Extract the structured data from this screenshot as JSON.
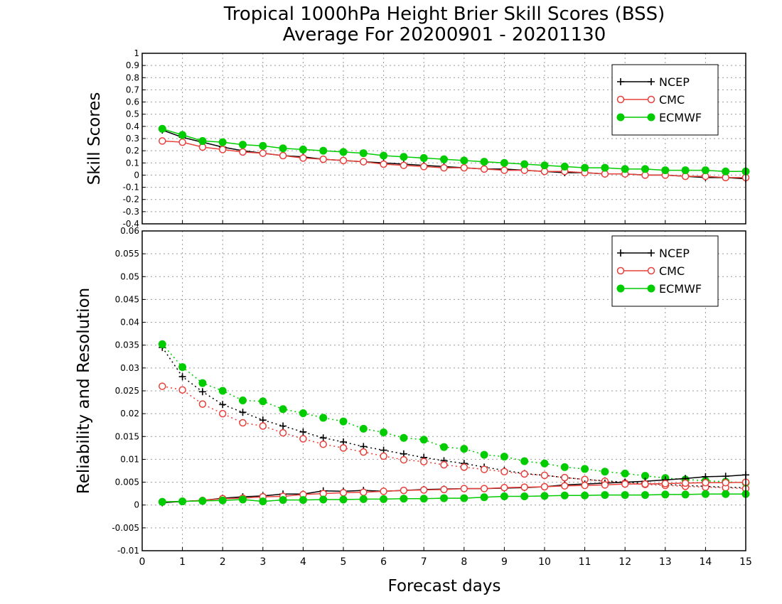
{
  "title_line1": "Tropical 1000hPa Height Brier Skill Scores (BSS)",
  "title_line2": "Average For 20200901 - 20201130",
  "xlabel": "Forecast days",
  "colors": {
    "NCEP": "#000000",
    "CMC": "#e8403a",
    "ECMWF": "#00cc00",
    "grid": "#999999"
  },
  "chart_data": [
    {
      "type": "line",
      "ylabel": "Skill Scores",
      "xlim": [
        0,
        15
      ],
      "ylim": [
        -0.4,
        1
      ],
      "x_ticks": [
        "0",
        "1",
        "2",
        "3",
        "4",
        "5",
        "6",
        "7",
        "8",
        "9",
        "10",
        "11",
        "12",
        "13",
        "14",
        "15"
      ],
      "y_ticks": [
        "-0.4",
        "-0.3",
        "-0.2",
        "-0.1",
        "0",
        "0.1",
        "0.2",
        "0.3",
        "0.4",
        "0.5",
        "0.6",
        "0.7",
        "0.8",
        "0.9",
        "1"
      ],
      "grid": true,
      "legend": "top-right",
      "x": [
        0.5,
        1,
        1.5,
        2,
        2.5,
        3,
        3.5,
        4,
        4.5,
        5,
        5.5,
        6,
        6.5,
        7,
        7.5,
        8,
        8.5,
        9,
        9.5,
        10,
        10.5,
        11,
        11.5,
        12,
        12.5,
        13,
        13.5,
        14,
        14.5,
        15
      ],
      "series": [
        {
          "name": "NCEP",
          "marker": "plus",
          "line": "solid",
          "values": [
            0.37,
            0.31,
            0.27,
            0.23,
            0.2,
            0.18,
            0.16,
            0.15,
            0.13,
            0.12,
            0.11,
            0.1,
            0.09,
            0.08,
            0.07,
            0.06,
            0.05,
            0.05,
            0.04,
            0.03,
            0.02,
            0.02,
            0.01,
            0.01,
            0.0,
            0.0,
            -0.01,
            -0.02,
            -0.02,
            -0.03
          ]
        },
        {
          "name": "CMC",
          "marker": "circle-open",
          "line": "solid",
          "values": [
            0.28,
            0.27,
            0.23,
            0.21,
            0.19,
            0.18,
            0.16,
            0.14,
            0.13,
            0.12,
            0.11,
            0.09,
            0.08,
            0.07,
            0.06,
            0.06,
            0.05,
            0.04,
            0.04,
            0.03,
            0.03,
            0.02,
            0.01,
            0.01,
            0.0,
            0.0,
            -0.01,
            -0.01,
            -0.02,
            -0.02
          ]
        },
        {
          "name": "ECMWF",
          "marker": "circle-filled",
          "line": "solid",
          "values": [
            0.38,
            0.33,
            0.28,
            0.27,
            0.25,
            0.24,
            0.22,
            0.21,
            0.2,
            0.19,
            0.18,
            0.16,
            0.15,
            0.14,
            0.13,
            0.12,
            0.11,
            0.1,
            0.09,
            0.08,
            0.07,
            0.06,
            0.06,
            0.05,
            0.05,
            0.04,
            0.04,
            0.04,
            0.03,
            0.03
          ]
        }
      ]
    },
    {
      "type": "line",
      "ylabel": "Reliability and Resolution",
      "xlabel": "Forecast days",
      "xlim": [
        0,
        15
      ],
      "ylim": [
        -0.01,
        0.06
      ],
      "x_ticks": [
        "0",
        "1",
        "2",
        "3",
        "4",
        "5",
        "6",
        "7",
        "8",
        "9",
        "10",
        "11",
        "12",
        "13",
        "14",
        "15"
      ],
      "y_ticks": [
        "-0.01",
        "-0.005",
        "0",
        "0.005",
        "0.01",
        "0.015",
        "0.02",
        "0.025",
        "0.03",
        "0.035",
        "0.04",
        "0.045",
        "0.05",
        "0.055",
        "0.06"
      ],
      "grid": true,
      "legend": "top-right",
      "x": [
        0.5,
        1,
        1.5,
        2,
        2.5,
        3,
        3.5,
        4,
        4.5,
        5,
        5.5,
        6,
        6.5,
        7,
        7.5,
        8,
        8.5,
        9,
        9.5,
        10,
        10.5,
        11,
        11.5,
        12,
        12.5,
        13,
        13.5,
        14,
        14.5,
        15
      ],
      "legend_series": [
        "NCEP",
        "CMC",
        "ECMWF"
      ],
      "series": [
        {
          "name": "NCEP",
          "marker": "plus",
          "line": "dotted",
          "values": [
            0.0345,
            0.0281,
            0.0248,
            0.022,
            0.0203,
            0.0186,
            0.0173,
            0.016,
            0.0147,
            0.0138,
            0.0128,
            0.012,
            0.0112,
            0.0104,
            0.0097,
            0.0091,
            0.0083,
            0.0076,
            0.0069,
            0.0065,
            0.006,
            0.0056,
            0.0053,
            0.005,
            0.0047,
            0.0045,
            0.0043,
            0.0041,
            0.0039,
            0.0038
          ]
        },
        {
          "name": "CMC",
          "marker": "circle-open",
          "line": "dotted",
          "values": [
            0.026,
            0.0252,
            0.0221,
            0.02,
            0.018,
            0.0173,
            0.0158,
            0.0145,
            0.0133,
            0.0125,
            0.0116,
            0.0107,
            0.0099,
            0.0095,
            0.0088,
            0.0083,
            0.0078,
            0.0073,
            0.0068,
            0.0065,
            0.006,
            0.0056,
            0.0052,
            0.0048,
            0.0045,
            0.0043,
            0.0041,
            0.0039,
            0.0038,
            0.0036
          ]
        },
        {
          "name": "ECMWF",
          "marker": "circle-filled",
          "line": "dotted",
          "values": [
            0.0352,
            0.0302,
            0.0267,
            0.025,
            0.0229,
            0.0227,
            0.021,
            0.0201,
            0.0191,
            0.0183,
            0.0167,
            0.0159,
            0.0147,
            0.0143,
            0.0127,
            0.0123,
            0.011,
            0.0106,
            0.0096,
            0.0091,
            0.0083,
            0.0079,
            0.0073,
            0.0069,
            0.0064,
            0.0059,
            0.0056,
            0.0053,
            0.0051,
            0.0049
          ]
        },
        {
          "name": "NCEP",
          "marker": "plus",
          "line": "solid",
          "values": [
            0.0005,
            0.0008,
            0.001,
            0.0015,
            0.0018,
            0.002,
            0.0024,
            0.0024,
            0.0031,
            0.003,
            0.0032,
            0.003,
            0.0032,
            0.0034,
            0.0035,
            0.0036,
            0.0036,
            0.0037,
            0.0038,
            0.004,
            0.0044,
            0.0046,
            0.0048,
            0.005,
            0.0052,
            0.0055,
            0.0058,
            0.0062,
            0.0063,
            0.0066
          ]
        },
        {
          "name": "CMC",
          "marker": "circle-open",
          "line": "solid",
          "values": [
            0.0007,
            0.0008,
            0.001,
            0.0014,
            0.0015,
            0.0018,
            0.0019,
            0.0023,
            0.0025,
            0.0027,
            0.0028,
            0.003,
            0.0032,
            0.0033,
            0.0034,
            0.0036,
            0.0036,
            0.0038,
            0.0039,
            0.004,
            0.0042,
            0.0043,
            0.0044,
            0.0046,
            0.0046,
            0.0047,
            0.0048,
            0.0049,
            0.0049,
            0.005
          ]
        },
        {
          "name": "ECMWF",
          "marker": "circle-filled",
          "line": "solid",
          "values": [
            0.0007,
            0.0008,
            0.0009,
            0.001,
            0.0012,
            0.0008,
            0.0011,
            0.0011,
            0.0012,
            0.0012,
            0.0013,
            0.0013,
            0.0014,
            0.0014,
            0.0015,
            0.0015,
            0.0017,
            0.0019,
            0.0019,
            0.002,
            0.0021,
            0.0021,
            0.0022,
            0.0022,
            0.0022,
            0.0023,
            0.0023,
            0.0024,
            0.0024,
            0.0024
          ]
        }
      ]
    }
  ]
}
